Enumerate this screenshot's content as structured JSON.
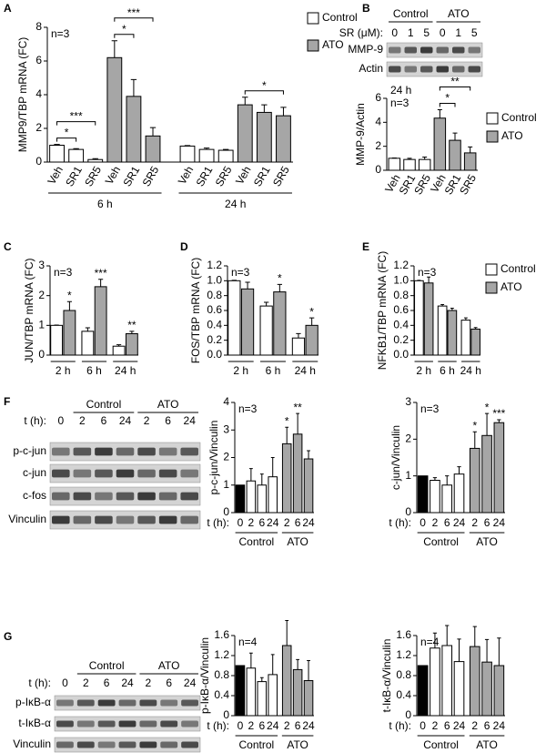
{
  "panels": [
    "A",
    "B",
    "C",
    "D",
    "E",
    "F",
    "G"
  ],
  "blots": [
    {
      "header": "SR (μM):",
      "groups": [
        {
          "label": "Control",
          "span": [
            0,
            2
          ]
        },
        {
          "label": "ATO",
          "span": [
            3,
            5
          ]
        }
      ],
      "lanes": [
        "0",
        "1",
        "5",
        "0",
        "1",
        "5"
      ],
      "rows": [
        "MMP-9",
        "Actin"
      ]
    },
    {
      "header": "t (h):",
      "groups": [
        {
          "label": "Control",
          "span": [
            1,
            3
          ]
        },
        {
          "label": "ATO",
          "span": [
            4,
            6
          ]
        }
      ],
      "lanes": [
        "0",
        "2",
        "6",
        "24",
        "2",
        "6",
        "24"
      ],
      "rows": [
        "p-c-jun",
        "c-jun",
        "c-fos",
        "Vinculin"
      ]
    },
    {
      "header": "t (h):",
      "groups": [
        {
          "label": "Control",
          "span": [
            1,
            3
          ]
        },
        {
          "label": "ATO",
          "span": [
            4,
            6
          ]
        }
      ],
      "lanes": [
        "0",
        "2",
        "6",
        "24",
        "2",
        "6",
        "24"
      ],
      "rows": [
        "p-IκB-α",
        "t-IκB-α",
        "Vinculin"
      ]
    }
  ],
  "chart_data": [
    {
      "type": "bar",
      "ylabel": "MMP9/TBP mRNA (FC)",
      "ylim": [
        0,
        8
      ],
      "yticks": [
        0,
        2,
        4,
        6,
        8
      ],
      "notes": [
        "n=3"
      ],
      "categories": [
        "Veh",
        "SR1",
        "SR5",
        "Veh",
        "SR1",
        "SR5",
        "Veh",
        "SR1",
        "SR5",
        "Veh",
        "SR1",
        "SR5"
      ],
      "groups": [
        {
          "label": "6 h",
          "span": [
            0,
            5
          ]
        },
        {
          "label": "24 h",
          "span": [
            6,
            11
          ]
        }
      ],
      "series": [
        {
          "name": "Control",
          "color": "#ffffff",
          "values": [
            1.0,
            0.75,
            0.15,
            null,
            null,
            null,
            0.95,
            0.75,
            0.7,
            null,
            null,
            null
          ],
          "errors": [
            0.05,
            0.05,
            0.05,
            null,
            null,
            null,
            0.03,
            0.08,
            0.05,
            null,
            null,
            null
          ]
        },
        {
          "name": "ATO",
          "color": "#a6a6a6",
          "values": [
            null,
            null,
            null,
            6.2,
            3.9,
            1.55,
            null,
            null,
            null,
            3.4,
            2.95,
            2.75
          ],
          "errors": [
            null,
            null,
            null,
            1.0,
            1.0,
            0.5,
            null,
            null,
            null,
            0.45,
            0.45,
            0.5
          ]
        }
      ],
      "annotations": [
        {
          "label": "*",
          "between": [
            0,
            1
          ]
        },
        {
          "label": "***",
          "between": [
            0,
            2
          ]
        },
        {
          "label": "*",
          "between": [
            3,
            4
          ]
        },
        {
          "label": "***",
          "between": [
            3,
            5
          ]
        },
        {
          "label": "*",
          "between": [
            9,
            11
          ]
        }
      ],
      "legend": true
    },
    {
      "type": "bar",
      "ylabel": "MMP-9/Actin",
      "ylim": [
        0,
        6
      ],
      "yticks": [
        0,
        2,
        4,
        6
      ],
      "notes": [
        "24 h",
        "n=3"
      ],
      "categories": [
        "Veh",
        "SR1",
        "SR5",
        "Veh",
        "SR1",
        "SR5"
      ],
      "series": [
        {
          "name": "Control",
          "color": "#ffffff",
          "values": [
            1.0,
            0.9,
            0.9,
            null,
            null,
            null
          ],
          "errors": [
            0.03,
            0.1,
            0.2,
            null,
            null,
            null
          ]
        },
        {
          "name": "ATO",
          "color": "#a6a6a6",
          "values": [
            null,
            null,
            null,
            4.35,
            2.5,
            1.45
          ],
          "errors": [
            null,
            null,
            null,
            0.7,
            0.6,
            0.5
          ]
        }
      ],
      "annotations": [
        {
          "label": "*",
          "between": [
            3,
            4
          ]
        },
        {
          "label": "**",
          "between": [
            3,
            5
          ]
        }
      ],
      "legend": true
    },
    {
      "type": "bar",
      "ylabel": "JUN/TBP mRNA (FC)",
      "ylim": [
        0,
        3
      ],
      "yticks": [
        0,
        1,
        2,
        3
      ],
      "notes": [
        "n=3"
      ],
      "categories": [
        null,
        null,
        null,
        null,
        null,
        null
      ],
      "groups": [
        {
          "label": "2 h",
          "span": [
            0,
            1
          ]
        },
        {
          "label": "6 h",
          "span": [
            2,
            3
          ]
        },
        {
          "label": "24 h",
          "span": [
            4,
            5
          ]
        }
      ],
      "series": [
        {
          "name": "Control",
          "color": "#ffffff",
          "values": [
            1.0,
            null,
            0.8,
            null,
            0.3,
            null
          ],
          "errors": [
            0.01,
            null,
            0.12,
            null,
            0.05,
            null
          ]
        },
        {
          "name": "ATO",
          "color": "#a6a6a6",
          "values": [
            null,
            1.5,
            null,
            2.3,
            null,
            0.72
          ],
          "errors": [
            null,
            0.3,
            null,
            0.25,
            null,
            0.08
          ]
        }
      ],
      "annotations": [
        {
          "label": "*",
          "at": 1
        },
        {
          "label": "***",
          "at": 3
        },
        {
          "label": "**",
          "at": 5
        }
      ]
    },
    {
      "type": "bar",
      "ylabel": "FOS/TBP mRNA (FC)",
      "ylim": [
        0,
        1.2
      ],
      "yticks": [
        {
          "value": 0,
          "label": "0.0"
        },
        0.2,
        0.4,
        0.6,
        0.8,
        {
          "value": 1,
          "label": "1.0"
        },
        1.2
      ],
      "notes": [
        "n=3"
      ],
      "categories": [
        null,
        null,
        null,
        null,
        null,
        null
      ],
      "groups": [
        {
          "label": "2 h",
          "span": [
            0,
            1
          ]
        },
        {
          "label": "6 h",
          "span": [
            2,
            3
          ]
        },
        {
          "label": "24 h",
          "span": [
            4,
            5
          ]
        }
      ],
      "series": [
        {
          "name": "Control",
          "color": "#ffffff",
          "values": [
            1.0,
            null,
            0.66,
            null,
            0.23,
            null
          ],
          "errors": [
            0.005,
            null,
            0.05,
            null,
            0.06,
            null
          ]
        },
        {
          "name": "ATO",
          "color": "#a6a6a6",
          "values": [
            null,
            0.89,
            null,
            0.85,
            null,
            0.4
          ],
          "errors": [
            null,
            0.09,
            null,
            0.1,
            null,
            0.1
          ]
        }
      ],
      "annotations": [
        {
          "label": "*",
          "at": 3
        },
        {
          "label": "*",
          "at": 5
        }
      ]
    },
    {
      "type": "bar",
      "ylabel": "NFKB1/TBP mRNA (FC)",
      "ylim": [
        0,
        1.2
      ],
      "yticks": [
        {
          "value": 0,
          "label": "0.0"
        },
        0.2,
        0.4,
        0.6,
        0.8,
        {
          "value": 1,
          "label": "1.0"
        },
        1.2
      ],
      "notes": [
        "n=3"
      ],
      "categories": [
        null,
        null,
        null,
        null,
        null,
        null
      ],
      "groups": [
        {
          "label": "2 h",
          "span": [
            0,
            1
          ]
        },
        {
          "label": "6 h",
          "span": [
            2,
            3
          ]
        },
        {
          "label": "24 h",
          "span": [
            4,
            5
          ]
        }
      ],
      "series": [
        {
          "name": "Control",
          "color": "#ffffff",
          "values": [
            1.0,
            null,
            0.66,
            null,
            0.47,
            null
          ],
          "errors": [
            0.005,
            null,
            0.02,
            null,
            0.03,
            null
          ]
        },
        {
          "name": "ATO",
          "color": "#a6a6a6",
          "values": [
            null,
            0.97,
            null,
            0.6,
            null,
            0.35
          ],
          "errors": [
            null,
            0.08,
            null,
            0.03,
            null,
            0.02
          ]
        }
      ],
      "legend": true
    },
    {
      "type": "bar",
      "ylabel": "p-c-jun/Vinculin",
      "ylim": [
        0,
        4
      ],
      "yticks": [
        0,
        1,
        2,
        3,
        4
      ],
      "notes": [
        "n=3"
      ],
      "x_prefix": "t (h):",
      "categories": [
        "0",
        "2",
        "6",
        "24",
        "2",
        "6",
        "24"
      ],
      "groups": [
        {
          "label": "Control",
          "span": [
            0,
            3
          ]
        },
        {
          "label": "ATO",
          "span": [
            4,
            6
          ]
        }
      ],
      "series": [
        {
          "colors": [
            "#000000",
            "#ffffff",
            "#ffffff",
            "#ffffff",
            "#a6a6a6",
            "#a6a6a6",
            "#a6a6a6"
          ],
          "values": [
            1.0,
            1.15,
            1.0,
            1.3,
            2.5,
            2.85,
            1.95
          ],
          "errors": [
            null,
            0.45,
            0.4,
            0.7,
            0.6,
            0.75,
            0.3
          ]
        }
      ],
      "annotations": [
        {
          "label": "*",
          "at": 4
        },
        {
          "label": "**",
          "at": 5
        }
      ]
    },
    {
      "type": "bar",
      "ylabel": "c-jun/Vinculin",
      "ylim": [
        0,
        3
      ],
      "yticks": [
        0,
        1,
        2,
        3
      ],
      "notes": [
        "n=3"
      ],
      "x_prefix": "t (h):",
      "categories": [
        "0",
        "2",
        "6",
        "24",
        "2",
        "6",
        "24"
      ],
      "groups": [
        {
          "label": "Control",
          "span": [
            0,
            3
          ]
        },
        {
          "label": "ATO",
          "span": [
            4,
            6
          ]
        }
      ],
      "series": [
        {
          "colors": [
            "#000000",
            "#ffffff",
            "#ffffff",
            "#ffffff",
            "#a6a6a6",
            "#a6a6a6",
            "#a6a6a6"
          ],
          "values": [
            1.0,
            0.88,
            0.75,
            1.05,
            1.75,
            2.1,
            2.45
          ],
          "errors": [
            null,
            0.07,
            0.25,
            0.2,
            0.45,
            0.6,
            0.08
          ]
        }
      ],
      "annotations": [
        {
          "label": "*",
          "at": 4
        },
        {
          "label": "*",
          "at": 5
        },
        {
          "label": "***",
          "at": 6
        }
      ]
    },
    {
      "type": "bar",
      "ylabel": "p-IκB-α/Vinculin",
      "ylim": [
        0,
        1.6
      ],
      "yticks": [
        0,
        0.4,
        0.8,
        1.2,
        1.6
      ],
      "notes": [
        "n=4"
      ],
      "x_prefix": "t (h):",
      "categories": [
        "0",
        "2",
        "6",
        "24",
        "2",
        "6",
        "24"
      ],
      "groups": [
        {
          "label": "Control",
          "span": [
            0,
            3
          ]
        },
        {
          "label": "ATO",
          "span": [
            4,
            6
          ]
        }
      ],
      "series": [
        {
          "colors": [
            "#000000",
            "#ffffff",
            "#ffffff",
            "#ffffff",
            "#a6a6a6",
            "#a6a6a6",
            "#a6a6a6"
          ],
          "values": [
            1.0,
            0.95,
            0.68,
            0.82,
            1.4,
            0.92,
            0.7
          ],
          "errors": [
            null,
            0.3,
            0.08,
            0.4,
            0.5,
            0.2,
            0.4
          ]
        }
      ]
    },
    {
      "type": "bar",
      "ylabel": "t-IκB-α/Vinculin",
      "ylim": [
        0,
        1.6
      ],
      "yticks": [
        0,
        0.4,
        0.8,
        1.2,
        1.6
      ],
      "notes": [
        "n=4"
      ],
      "x_prefix": "t (h):",
      "categories": [
        "0",
        "2",
        "6",
        "24",
        "2",
        "6",
        "24"
      ],
      "groups": [
        {
          "label": "Control",
          "span": [
            0,
            3
          ]
        },
        {
          "label": "ATO",
          "span": [
            4,
            6
          ]
        }
      ],
      "series": [
        {
          "colors": [
            "#000000",
            "#ffffff",
            "#ffffff",
            "#ffffff",
            "#a6a6a6",
            "#a6a6a6",
            "#a6a6a6"
          ],
          "values": [
            1.0,
            1.35,
            1.4,
            1.08,
            1.38,
            1.07,
            1.0
          ],
          "errors": [
            null,
            0.3,
            0.4,
            0.45,
            0.4,
            0.45,
            0.55
          ]
        }
      ]
    }
  ]
}
